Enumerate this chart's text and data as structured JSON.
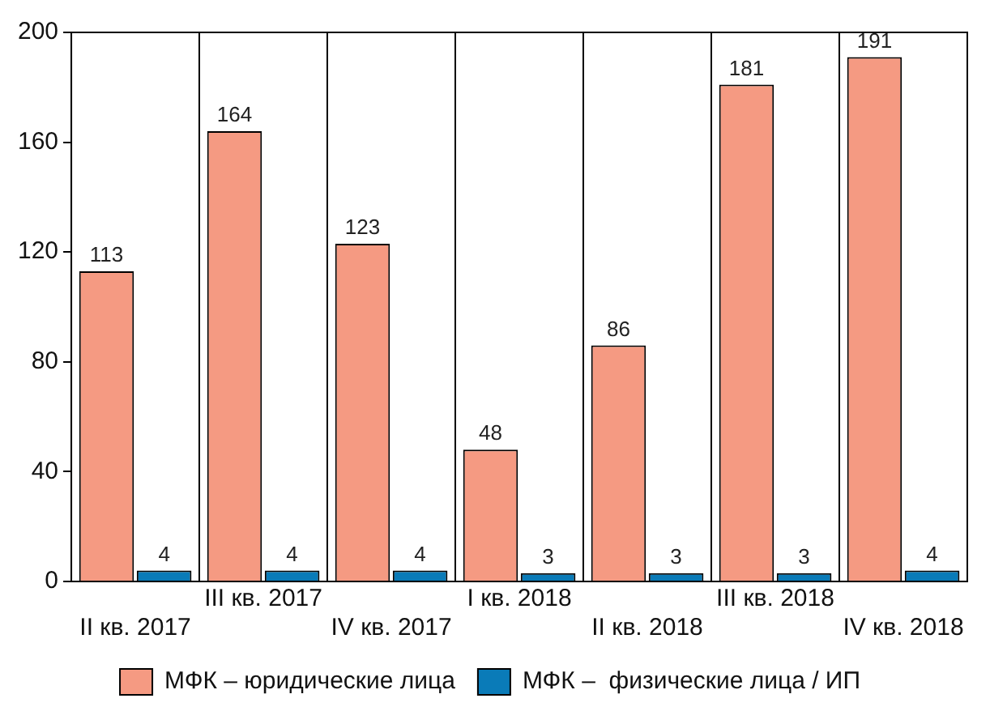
{
  "chart_data": {
    "type": "bar",
    "categories": [
      "II кв. 2017",
      "III кв. 2017",
      "IV кв. 2017",
      "I кв. 2018",
      "II кв. 2018",
      "III кв. 2018",
      "IV кв. 2018"
    ],
    "series": [
      {
        "name": "МФК – юридические лица",
        "color": "#f59a82",
        "values": [
          113,
          164,
          123,
          48,
          86,
          181,
          191
        ]
      },
      {
        "name": "МФК –  физические лица / ИП",
        "color": "#0a7bb8",
        "values": [
          4,
          4,
          4,
          3,
          3,
          3,
          4
        ]
      }
    ],
    "ylim": [
      0,
      200
    ],
    "yticks": [
      0,
      40,
      80,
      120,
      160,
      200
    ],
    "grid": "x",
    "legend": "bottom",
    "data_labels": true
  }
}
